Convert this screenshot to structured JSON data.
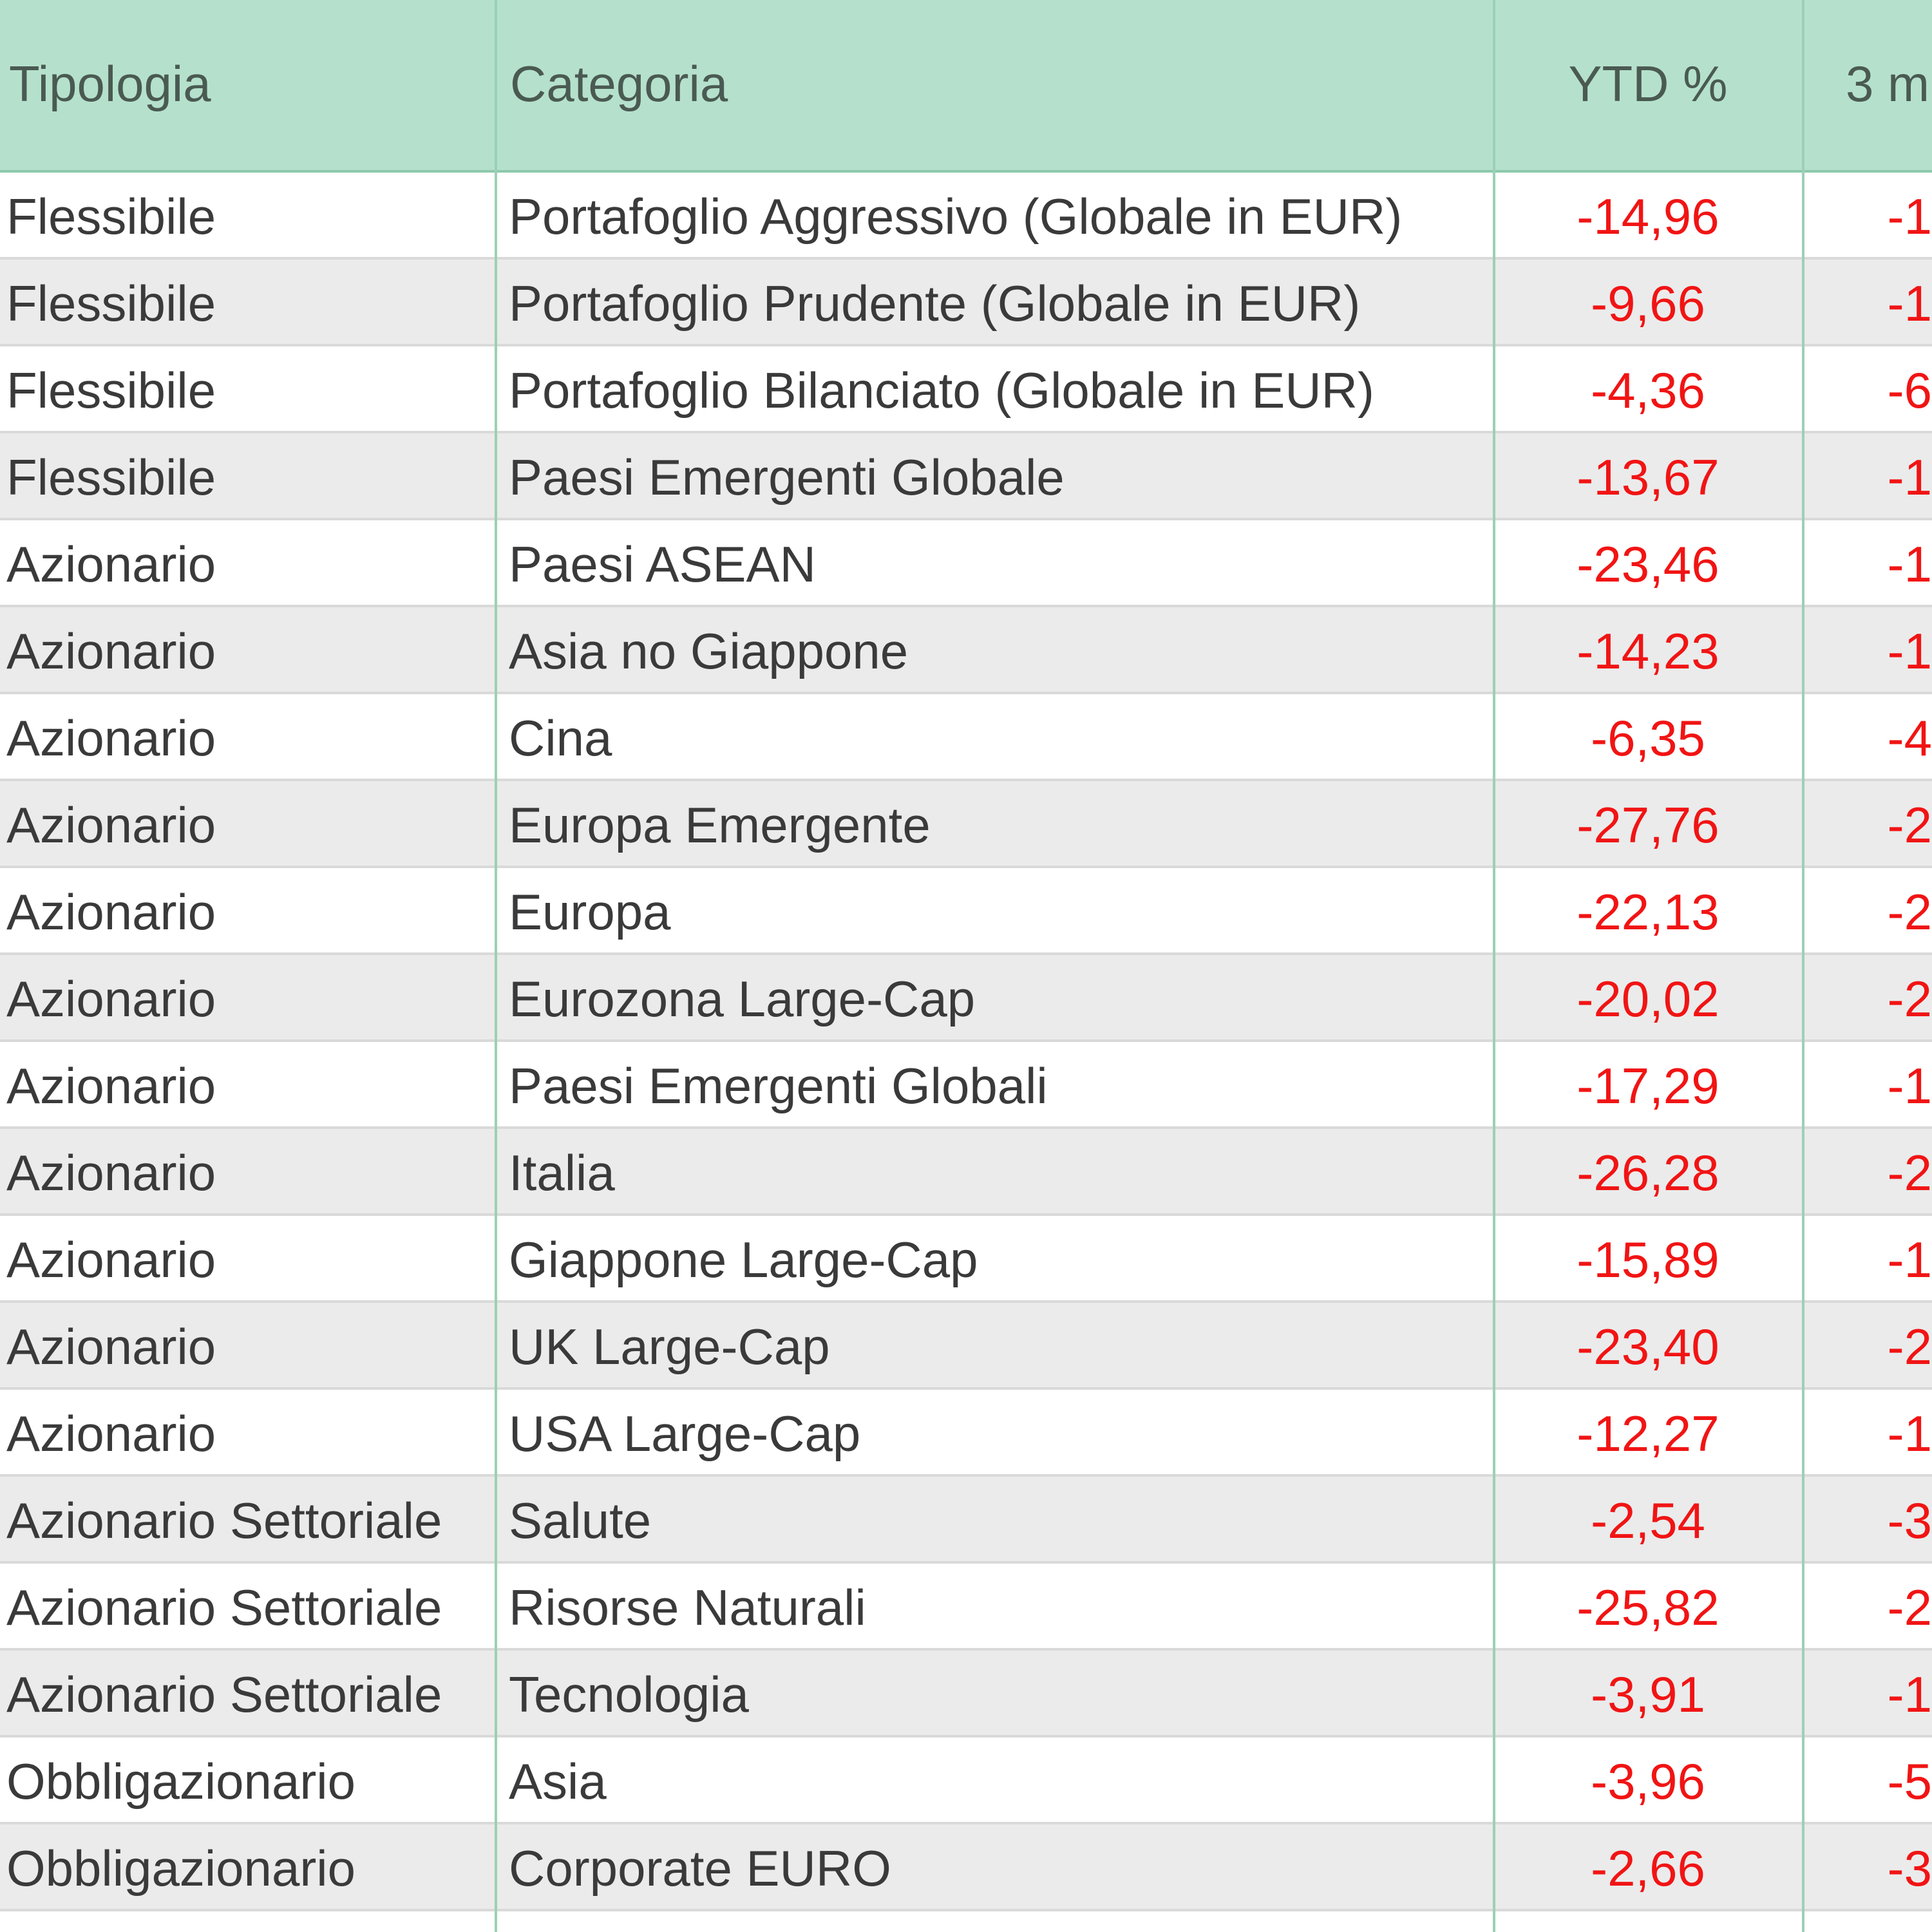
{
  "table": {
    "headers": {
      "tipologia": "Tipologia",
      "categoria": "Categoria",
      "ytd": "YTD %",
      "m3": "3 m"
    },
    "rows": [
      {
        "tipologia": "Flessibile",
        "categoria": "Portafoglio Aggressivo (Globale in EUR)",
        "ytd": "-14,96",
        "m3": "-1"
      },
      {
        "tipologia": "Flessibile",
        "categoria": "Portafoglio Prudente (Globale in EUR)",
        "ytd": "-9,66",
        "m3": "-1"
      },
      {
        "tipologia": "Flessibile",
        "categoria": "Portafoglio Bilanciato (Globale in EUR)",
        "ytd": "-4,36",
        "m3": "-6"
      },
      {
        "tipologia": "Flessibile",
        "categoria": "Paesi Emergenti Globale",
        "ytd": "-13,67",
        "m3": "-1"
      },
      {
        "tipologia": "Azionario",
        "categoria": "Paesi ASEAN",
        "ytd": "-23,46",
        "m3": "-1"
      },
      {
        "tipologia": "Azionario",
        "categoria": "Asia no Giappone",
        "ytd": "-14,23",
        "m3": "-1"
      },
      {
        "tipologia": "Azionario",
        "categoria": "Cina",
        "ytd": "-6,35",
        "m3": "-4"
      },
      {
        "tipologia": "Azionario",
        "categoria": "Europa Emergente",
        "ytd": "-27,76",
        "m3": "-2"
      },
      {
        "tipologia": "Azionario",
        "categoria": "Europa",
        "ytd": "-22,13",
        "m3": "-2"
      },
      {
        "tipologia": "Azionario",
        "categoria": "Eurozona Large-Cap",
        "ytd": "-20,02",
        "m3": "-2"
      },
      {
        "tipologia": "Azionario",
        "categoria": "Paesi Emergenti Globali",
        "ytd": "-17,29",
        "m3": "-1"
      },
      {
        "tipologia": "Azionario",
        "categoria": "Italia",
        "ytd": "-26,28",
        "m3": "-2"
      },
      {
        "tipologia": "Azionario",
        "categoria": "Giappone Large-Cap",
        "ytd": "-15,89",
        "m3": "-1"
      },
      {
        "tipologia": "Azionario",
        "categoria": "UK Large-Cap",
        "ytd": "-23,40",
        "m3": "-2"
      },
      {
        "tipologia": "Azionario",
        "categoria": "USA Large-Cap",
        "ytd": "-12,27",
        "m3": "-1"
      },
      {
        "tipologia": "Azionario Settoriale",
        "categoria": "Salute",
        "ytd": "-2,54",
        "m3": "-3"
      },
      {
        "tipologia": "Azionario Settoriale",
        "categoria": "Risorse Naturali",
        "ytd": "-25,82",
        "m3": "-2"
      },
      {
        "tipologia": "Azionario Settoriale",
        "categoria": "Tecnologia",
        "ytd": "-3,91",
        "m3": "-1"
      },
      {
        "tipologia": "Obbligazionario",
        "categoria": "Asia",
        "ytd": "-3,96",
        "m3": "-5"
      },
      {
        "tipologia": "Obbligazionario",
        "categoria": "Corporate EURO",
        "ytd": "-2,66",
        "m3": "-3"
      }
    ]
  },
  "colors": {
    "header_bg": "#b5e1cc",
    "negative_value": "#f11414",
    "row_stripe": "#ebebeb"
  }
}
